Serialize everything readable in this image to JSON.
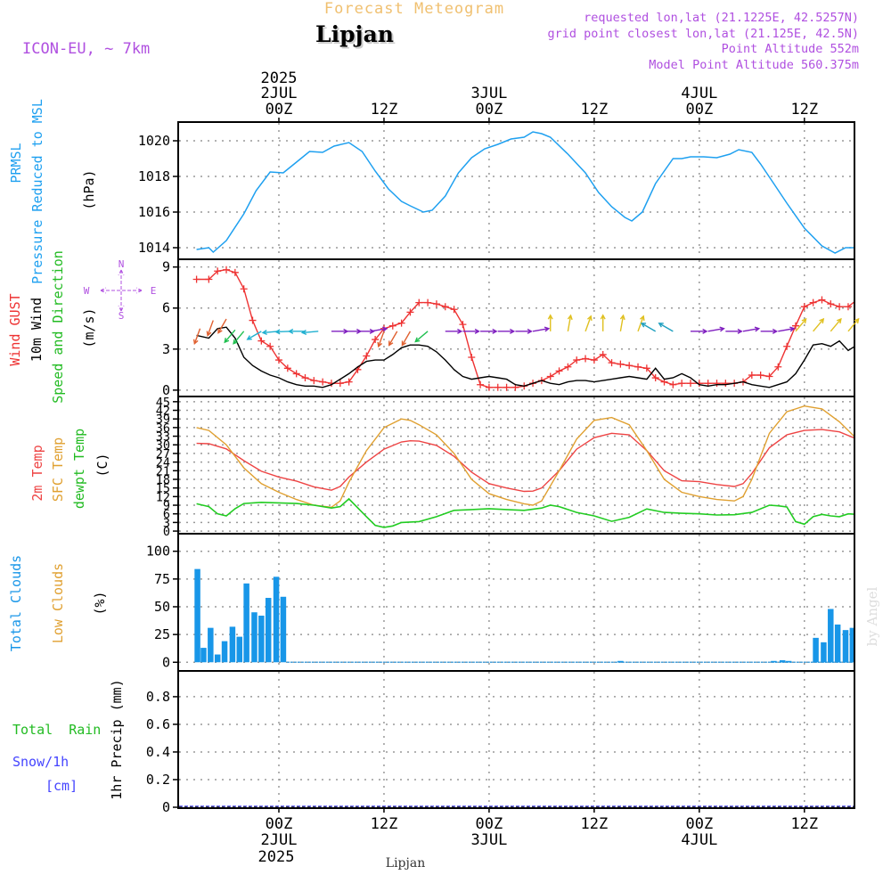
{
  "header": {
    "product": "Forecast Meteogram",
    "location": "Lipjan",
    "model": "ICON-EU, ~ 7km",
    "requested": "requested lon,lat (21.1225E, 42.5257N)",
    "grid_point": "grid point closest lon,lat (21.125E, 42.5N)",
    "point_altitude": "Point Altitude 552m",
    "model_altitude": "Model Point Altitude 560.375m"
  },
  "footer": {
    "location": "Lipjan",
    "credit": "by Angel"
  },
  "time_axis": {
    "top_year": "2025",
    "bottom_year": "2025",
    "ticks": [
      {
        "t": 0,
        "top": [
          "2JUL",
          "00Z"
        ],
        "bottom": [
          "00Z",
          "2JUL"
        ]
      },
      {
        "t": 12,
        "top": [
          "12Z"
        ],
        "bottom": [
          "12Z"
        ]
      },
      {
        "t": 24,
        "top": [
          "3JUL",
          "00Z"
        ],
        "bottom": [
          "00Z",
          "3JUL"
        ]
      },
      {
        "t": 36,
        "top": [
          "12Z"
        ],
        "bottom": [
          "12Z"
        ]
      },
      {
        "t": 48,
        "top": [
          "4JUL",
          "00Z"
        ],
        "bottom": [
          "00Z",
          "4JUL"
        ]
      },
      {
        "t": 60,
        "top": [
          "12Z"
        ],
        "bottom": [
          "12Z"
        ]
      }
    ]
  },
  "colors": {
    "pressure": "#1ea0f0",
    "gust": "#ee3333",
    "wind": "#000000",
    "temp2m": "#ee4444",
    "sfc_temp": "#e0a030",
    "dewpoint": "#22cc22",
    "total_clouds": "#1896e8",
    "low_clouds": "#e0a030",
    "rain": "#22bb22",
    "snow": "#4444ff",
    "header_purple": "#b050e0",
    "header_orange": "#f0c070"
  },
  "panels": {
    "pressure": {
      "labels": [
        "PRMSL",
        "Pressure Reduced to MSL"
      ],
      "unit": "(hPa)",
      "yticks": [
        "1014",
        "1016",
        "1018",
        "1020"
      ]
    },
    "wind": {
      "labels": [
        "Wind GUST",
        "10m Wind",
        "Speed and Direction"
      ],
      "unit": "(m/s)",
      "yticks": [
        "0",
        "3",
        "6",
        "9"
      ],
      "compass": {
        "n": "N",
        "s": "S",
        "w": "W",
        "e": "E"
      }
    },
    "temperature": {
      "labels": [
        "2m Temp",
        "SFC Temp",
        "dewpt Temp"
      ],
      "unit": "(C)",
      "yticks": [
        "0",
        "3",
        "6",
        "9",
        "12",
        "15",
        "18",
        "21",
        "24",
        "27",
        "30",
        "33",
        "36",
        "39",
        "42",
        "45"
      ]
    },
    "clouds": {
      "labels": [
        "Total Clouds",
        "Low Clouds"
      ],
      "unit": "(%)",
      "yticks": [
        "0",
        "25",
        "50",
        "75",
        "100"
      ]
    },
    "precip": {
      "labels": [
        "Total  Rain",
        "Snow/1h",
        "[cm]"
      ],
      "unit": "1hr Precip (mm)",
      "yticks": [
        "0",
        "0.2",
        "0.4",
        "0.6",
        "0.8"
      ]
    }
  },
  "chart_data": [
    {
      "type": "line",
      "title": "PRMSL Pressure Reduced to MSL",
      "ylabel": "hPa",
      "ylim": [
        1013.4,
        1021.0
      ],
      "series": [
        {
          "name": "PRMSL",
          "x": [
            -9.4,
            -8,
            -7.5,
            -6,
            -4,
            -2.6,
            -1,
            0.5,
            2,
            3.5,
            5,
            6.3,
            8,
            9.5,
            11,
            12.5,
            14,
            15,
            16.5,
            17.5,
            19,
            20.5,
            22,
            23.5,
            25,
            26.5,
            28,
            29,
            30,
            31,
            33,
            35,
            36.5,
            38,
            39.5,
            40.3,
            41.5,
            43,
            45,
            46,
            47,
            48.5,
            50,
            51.5,
            52.5,
            54,
            55,
            56.5,
            58,
            60,
            62,
            63.5,
            64.7,
            66
          ],
          "values": [
            1013.9,
            1014.0,
            1013.75,
            1014.4,
            1015.9,
            1017.2,
            1018.25,
            1018.2,
            1018.8,
            1019.4,
            1019.35,
            1019.7,
            1019.9,
            1019.4,
            1018.3,
            1017.3,
            1016.6,
            1016.35,
            1016.0,
            1016.1,
            1016.9,
            1018.2,
            1019.05,
            1019.55,
            1019.8,
            1020.1,
            1020.2,
            1020.5,
            1020.4,
            1020.2,
            1019.25,
            1018.2,
            1017.1,
            1016.3,
            1015.7,
            1015.5,
            1016.0,
            1017.6,
            1019.0,
            1019.0,
            1019.1,
            1019.1,
            1019.05,
            1019.25,
            1019.5,
            1019.35,
            1018.7,
            1017.6,
            1016.5,
            1015.1,
            1014.1,
            1013.7,
            1014.0,
            1014.0
          ]
        }
      ]
    },
    {
      "type": "line",
      "title": "Wind GUST / 10m Wind Speed and Direction",
      "ylabel": "m/s",
      "ylim": [
        -0.4,
        9.5
      ],
      "series": [
        {
          "name": "Wind GUST",
          "x": [
            -9.4,
            -8,
            -7,
            -6,
            -5,
            -4,
            -3,
            -2,
            -1,
            0,
            1,
            2,
            3,
            4,
            5,
            6,
            7,
            8,
            9,
            10,
            11,
            12,
            13,
            14,
            15,
            16,
            17,
            18,
            19,
            20,
            21,
            22,
            23,
            24,
            25,
            26,
            27,
            28,
            29,
            30,
            31,
            32,
            33,
            34,
            35,
            36,
            37,
            38,
            39,
            40,
            41,
            42,
            43,
            44,
            45,
            46,
            47,
            48,
            49,
            50,
            51,
            52,
            53,
            54,
            55,
            56,
            57,
            58,
            59,
            60,
            61,
            62,
            63,
            64,
            65,
            66
          ],
          "values": [
            8.1,
            8.1,
            8.7,
            8.8,
            8.6,
            7.4,
            5.1,
            3.6,
            3.2,
            2.2,
            1.6,
            1.2,
            0.9,
            0.7,
            0.6,
            0.5,
            0.5,
            0.6,
            1.5,
            2.5,
            3.7,
            4.5,
            4.7,
            4.9,
            5.7,
            6.4,
            6.4,
            6.3,
            6.1,
            5.9,
            4.8,
            2.4,
            0.4,
            0.2,
            0.2,
            0.2,
            0.2,
            0.3,
            0.5,
            0.7,
            1.0,
            1.4,
            1.7,
            2.2,
            2.3,
            2.2,
            2.6,
            2.0,
            1.9,
            1.8,
            1.7,
            1.6,
            0.9,
            0.6,
            0.4,
            0.5,
            0.5,
            0.5,
            0.5,
            0.5,
            0.5,
            0.5,
            0.6,
            1.1,
            1.1,
            1.0,
            1.7,
            3.2,
            4.7,
            6.1,
            6.4,
            6.6,
            6.3,
            6.1,
            6.1,
            6.6
          ]
        },
        {
          "name": "10m Wind",
          "x": [
            -9.4,
            -8,
            -7,
            -6,
            -5,
            -4,
            -3,
            -2,
            -1,
            0,
            1,
            2,
            3,
            4,
            5,
            6,
            7,
            8,
            9,
            10,
            11,
            12,
            13,
            14,
            15,
            16,
            17,
            18,
            19,
            20,
            21,
            22,
            23,
            24,
            25,
            26,
            27,
            28,
            29,
            30,
            31,
            32,
            33,
            34,
            35,
            36,
            37,
            38,
            39,
            40,
            41,
            42,
            43,
            44,
            45,
            46,
            47,
            48,
            49,
            50,
            51,
            52,
            53,
            54,
            55,
            56,
            57,
            58,
            59,
            60,
            61,
            62,
            63,
            64,
            65,
            66
          ],
          "values": [
            4.0,
            3.8,
            4.5,
            4.6,
            3.8,
            2.4,
            1.8,
            1.4,
            1.1,
            0.9,
            0.6,
            0.4,
            0.3,
            0.3,
            0.2,
            0.4,
            0.8,
            1.2,
            1.7,
            2.1,
            2.2,
            2.2,
            2.6,
            3.1,
            3.3,
            3.3,
            3.2,
            2.8,
            2.2,
            1.5,
            1.0,
            0.8,
            0.9,
            1.0,
            0.9,
            0.8,
            0.4,
            0.3,
            0.5,
            0.7,
            0.5,
            0.4,
            0.6,
            0.7,
            0.7,
            0.6,
            0.7,
            0.8,
            0.9,
            1.0,
            0.9,
            0.8,
            1.6,
            0.8,
            0.9,
            1.2,
            0.9,
            0.4,
            0.3,
            0.4,
            0.4,
            0.5,
            0.6,
            0.4,
            0.3,
            0.2,
            0.4,
            0.6,
            1.2,
            2.2,
            3.3,
            3.4,
            3.2,
            3.6,
            2.9,
            3.3
          ]
        }
      ],
      "wind_direction_arrows": {
        "x": [
          -9,
          -7.5,
          -6,
          -5,
          -4,
          -2,
          0,
          1.5,
          3,
          4.5,
          6,
          7.5,
          9,
          10.5,
          12,
          13.5,
          15,
          17,
          19,
          21,
          23,
          25,
          27,
          29,
          31,
          33,
          35,
          37,
          39,
          41,
          43,
          45,
          47,
          49,
          51,
          53,
          55,
          57,
          59,
          61,
          63,
          65
        ],
        "dir_deg": [
          200,
          200,
          210,
          220,
          220,
          240,
          265,
          268,
          270,
          265,
          90,
          90,
          90,
          80,
          200,
          210,
          210,
          230,
          90,
          90,
          90,
          90,
          90,
          80,
          0,
          10,
          20,
          0,
          10,
          20,
          300,
          300,
          90,
          80,
          90,
          80,
          90,
          80,
          40,
          40,
          40,
          40
        ],
        "speed": [
          3.9,
          4.5,
          4.6,
          3.8,
          2.4,
          1.4,
          0.9,
          0.6,
          0.4,
          0.3,
          0.2,
          0.4,
          1.2,
          2.0,
          2.2,
          2.6,
          3.3,
          3.2,
          2.2,
          1.0,
          0.9,
          0.9,
          0.4,
          0.5,
          0.5,
          0.6,
          0.7,
          0.7,
          0.9,
          0.9,
          0.8,
          0.9,
          0.9,
          0.3,
          0.4,
          0.6,
          0.3,
          0.4,
          1.2,
          3.3,
          3.2,
          3.3
        ]
      }
    },
    {
      "type": "line",
      "title": "2m Temp / SFC Temp / dewpt Temp",
      "ylabel": "C",
      "ylim": [
        -0.6,
        46.5
      ],
      "series": [
        {
          "name": "2m Temp",
          "x": [
            -9.4,
            -8,
            -6,
            -4,
            -2,
            0,
            2,
            4,
            6,
            7,
            8,
            10,
            12,
            14,
            15,
            16,
            18,
            20,
            22,
            24,
            26,
            28,
            29,
            30,
            32,
            34,
            36,
            38,
            40,
            42,
            44,
            46,
            48,
            50,
            52,
            53,
            54,
            56,
            58,
            60,
            62,
            64,
            66
          ],
          "values": [
            30.5,
            30.4,
            28.6,
            24.5,
            20.8,
            18.8,
            17.4,
            15.4,
            14.2,
            15.5,
            18.8,
            24.0,
            28.5,
            31.0,
            31.4,
            31.3,
            29.8,
            26.0,
            20.5,
            16.5,
            15.0,
            13.8,
            13.9,
            15.0,
            21.0,
            28.5,
            32.5,
            34.0,
            33.5,
            28.0,
            21.0,
            17.5,
            17.2,
            16.2,
            15.5,
            16.5,
            20.0,
            29.0,
            33.5,
            35.0,
            35.3,
            34.5,
            32.0
          ]
        },
        {
          "name": "SFC Temp",
          "x": [
            -9.4,
            -8,
            -6,
            -4,
            -2,
            0,
            2,
            4,
            6,
            7,
            8,
            10,
            12,
            14,
            15,
            16,
            18,
            20,
            22,
            24,
            26,
            28,
            29,
            30,
            32,
            34,
            36,
            38,
            40,
            42,
            44,
            46,
            48,
            50,
            52,
            53,
            54,
            56,
            58,
            60,
            62,
            64,
            66
          ],
          "values": [
            36.0,
            35.0,
            30.0,
            22.0,
            16.5,
            13.5,
            11.0,
            9.0,
            8.3,
            10.5,
            17.0,
            28.0,
            36.0,
            39.0,
            38.5,
            37.0,
            33.5,
            27.0,
            18.0,
            13.0,
            11.0,
            9.5,
            9.0,
            10.5,
            21.0,
            32.0,
            38.5,
            39.5,
            37.0,
            28.0,
            18.0,
            13.5,
            12.0,
            11.0,
            10.5,
            12.0,
            18.0,
            34.0,
            41.5,
            43.5,
            42.5,
            38.0,
            32.0
          ]
        },
        {
          "name": "dewpt Temp",
          "x": [
            -9.4,
            -8,
            -7,
            -6,
            -5,
            -4,
            -2,
            0,
            2,
            4,
            6,
            7,
            8,
            10,
            11,
            12,
            13,
            14,
            16,
            18,
            20,
            22,
            24,
            26,
            28,
            30,
            31,
            32,
            34,
            36,
            38,
            40,
            42,
            44,
            46,
            48,
            50,
            52,
            54,
            56,
            57,
            58,
            59,
            60,
            61,
            62,
            63,
            64,
            65,
            66
          ],
          "values": [
            9.5,
            8.5,
            6.0,
            5.3,
            7.8,
            9.6,
            10.0,
            9.8,
            9.6,
            9.0,
            8.0,
            8.5,
            11.2,
            5.0,
            2.0,
            1.3,
            1.8,
            3.0,
            3.3,
            5.0,
            7.2,
            7.5,
            7.8,
            7.5,
            7.2,
            8.0,
            9.0,
            8.5,
            6.5,
            5.3,
            3.4,
            4.8,
            7.7,
            6.5,
            6.2,
            6.0,
            5.6,
            5.7,
            6.5,
            9.0,
            8.8,
            8.4,
            3.3,
            2.4,
            5.0,
            5.8,
            5.3,
            5.0,
            6.0,
            5.8
          ]
        }
      ]
    },
    {
      "type": "bar",
      "title": "Total Clouds / Low Clouds",
      "ylabel": "%",
      "ylim": [
        -7,
        115
      ],
      "series": [
        {
          "name": "Total Clouds",
          "x": [
            -9.3,
            -8.6,
            -7.8,
            -7,
            -6.2,
            -5.3,
            -4.5,
            -3.7,
            -2.8,
            -2,
            -1.2,
            -0.3,
            0.5,
            61.3,
            62.2,
            63,
            63.8,
            64.7,
            65.5
          ],
          "values": [
            84,
            13,
            31,
            7,
            19,
            32,
            23,
            71,
            45,
            42,
            58,
            77,
            59,
            22,
            18,
            48,
            34,
            29,
            31
          ]
        },
        {
          "name": "Total Clouds (trace)",
          "x": [
            39,
            56.5,
            57.5,
            58.2
          ],
          "values": [
            1.2,
            1.2,
            1.8,
            1.2
          ]
        }
      ]
    },
    {
      "type": "line",
      "title": "1hr Precip",
      "ylabel": "mm",
      "ylim": [
        0,
        0.98
      ],
      "series": [
        {
          "name": "Total Rain",
          "x": [
            -9.4,
            66
          ],
          "values": [
            0,
            0
          ]
        },
        {
          "name": "Snow/1h",
          "x": [
            -9.4,
            66
          ],
          "values": [
            0,
            0
          ]
        }
      ]
    }
  ]
}
